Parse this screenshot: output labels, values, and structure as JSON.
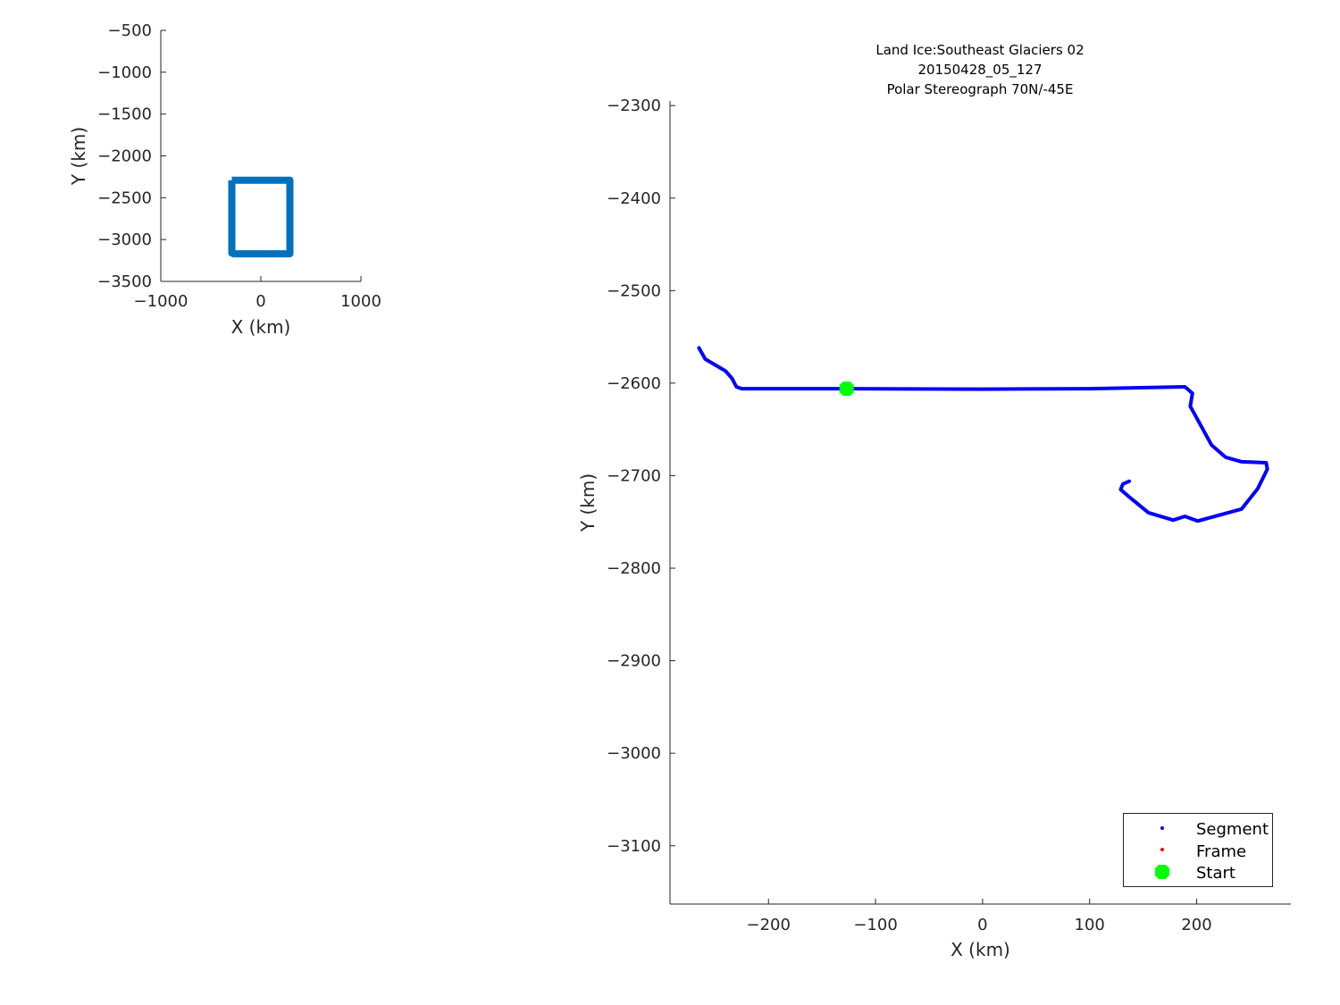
{
  "chart_data": [
    {
      "type": "line",
      "xlabel": "X (km)",
      "ylabel": "Y (km)",
      "xlim": [
        -1000,
        1000
      ],
      "ylim": [
        -3500,
        -500
      ],
      "xticks": [
        -1000,
        0,
        1000
      ],
      "yticks": [
        -500,
        -1000,
        -1500,
        -2000,
        -2500,
        -3000,
        -3500
      ],
      "grid": false,
      "series": [
        {
          "color": "#0072BD",
          "x": [
            -290,
            290,
            290,
            -270,
            -290,
            -290
          ],
          "y": [
            -2290,
            -2290,
            -3170,
            -3170,
            -3160,
            -2290
          ]
        }
      ]
    },
    {
      "type": "line",
      "title": [
        "Land Ice:Southeast  Glaciers 02",
        "20150428_05_127",
        "Polar Stereograph 70N/-45E"
      ],
      "xlabel": "X (km)",
      "ylabel": "Y (km)",
      "xlim": [
        -292,
        288
      ],
      "ylim": [
        -3163,
        -2295
      ],
      "xticks": [
        -200,
        -100,
        0,
        100,
        200
      ],
      "yticks": [
        -2300,
        -2400,
        -2500,
        -2600,
        -2700,
        -2800,
        -2900,
        -3000,
        -3100
      ],
      "grid": false,
      "legend_position": "bottom-right",
      "series": [
        {
          "name": "Segment",
          "color": "#0000FF",
          "x": [
            -265,
            -259,
            -240,
            -234,
            -230,
            -225,
            -127,
            0,
            100,
            189,
            196,
            194,
            214,
            227,
            242,
            265,
            266,
            257,
            242,
            201,
            189,
            178,
            155,
            137,
            129,
            131,
            137
          ],
          "y": [
            -2562,
            -2574,
            -2587,
            -2595,
            -2604,
            -2606,
            -2606,
            -2606.5,
            -2606,
            -2604,
            -2611,
            -2625,
            -2667,
            -2680,
            -2685,
            -2686,
            -2693,
            -2714,
            -2736,
            -2749,
            -2744,
            -2748,
            -2740,
            -2723,
            -2715,
            -2709,
            -2706
          ]
        },
        {
          "name": "Frame",
          "color": "#FF0000",
          "x": [],
          "y": []
        },
        {
          "name": "Start",
          "color": "#00FF00",
          "x": [
            -127
          ],
          "y": [
            -2606
          ]
        }
      ]
    }
  ]
}
